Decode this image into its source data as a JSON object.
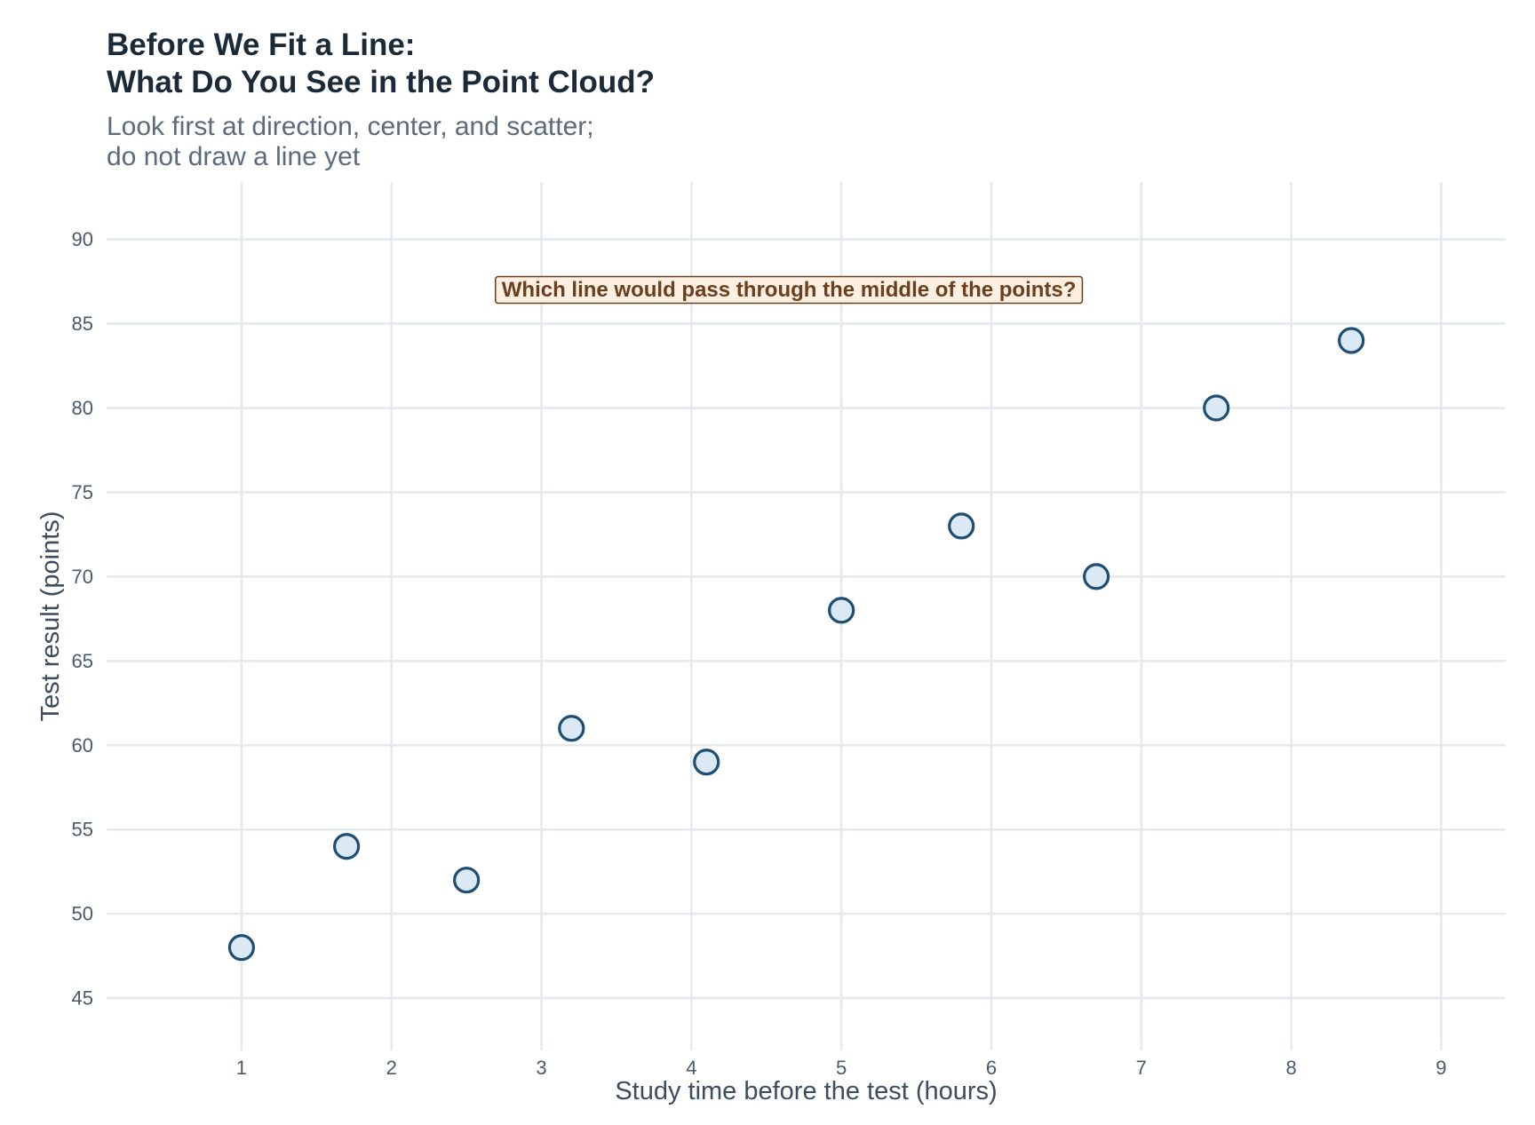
{
  "chart_data": {
    "type": "scatter",
    "title": [
      "Before We Fit a Line:",
      "What Do You See in the Point Cloud?"
    ],
    "subtitle": [
      "Look first at direction, center, and scatter;",
      "do not draw a line yet"
    ],
    "xlabel": "Study time before the test (hours)",
    "ylabel": "Test result (points)",
    "xlim": [
      0.1,
      9.43
    ],
    "ylim": [
      41.9,
      93.4
    ],
    "xticks": [
      1,
      2,
      3,
      4,
      5,
      6,
      7,
      8,
      9
    ],
    "yticks": [
      45,
      50,
      55,
      60,
      65,
      70,
      75,
      80,
      85,
      90
    ],
    "grid": true,
    "series": [
      {
        "x": [
          1.0,
          1.7,
          2.5,
          3.2,
          4.1,
          5.0,
          5.8,
          6.7,
          7.5,
          8.4
        ],
        "y": [
          48,
          54,
          52,
          61,
          59,
          68,
          73,
          70,
          80,
          84
        ]
      }
    ],
    "annotation": {
      "text": "Which line would pass through the middle of the points?",
      "x": 4.65,
      "y": 87
    }
  },
  "colors": {
    "point_fill": "#dbe9f5",
    "point_stroke": "#1e4e74",
    "grid": "#e4e9ef",
    "annotation_fill": "#fdf0e2",
    "annotation_stroke": "#6b3e1e"
  }
}
